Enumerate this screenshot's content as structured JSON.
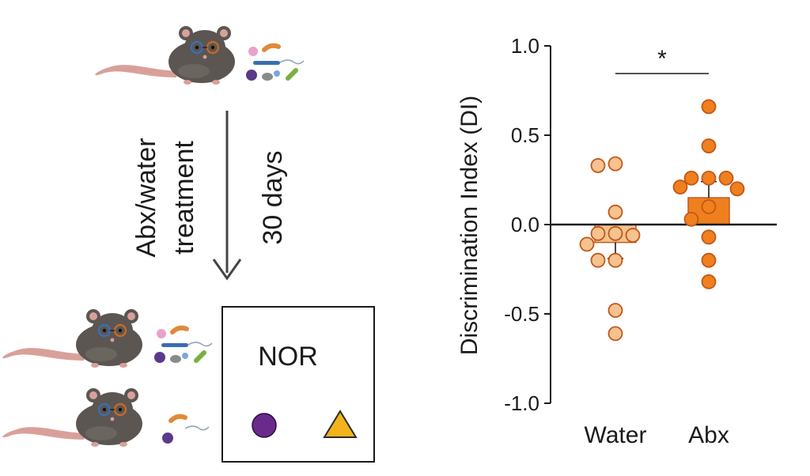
{
  "colors": {
    "water": "#f6c28f",
    "abx": "#f07f1e",
    "marker_edge": "#c0581a",
    "mouse_fur": "#5b5652",
    "mouse_pink": "#d9a09a",
    "object_circle": "#6a2a8c",
    "object_triangle": "#f2b31c"
  },
  "schematic": {
    "treatment_label_line1": "Abx/water",
    "treatment_label_line2": "treatment",
    "duration_label": "30 days",
    "test_label": "NOR"
  },
  "chart_data": {
    "type": "bar",
    "ylabel": "Discrimination Index (DI)",
    "ylim": [
      -1.0,
      1.0
    ],
    "yticks": [
      -1.0,
      -0.5,
      0.0,
      0.5,
      1.0
    ],
    "ytick_labels": [
      "-1.0",
      "-0.5",
      "0.0",
      "0.5",
      "1.0"
    ],
    "categories": [
      "Water",
      "Abx"
    ],
    "means": [
      -0.1,
      0.15
    ],
    "sem": [
      0.09,
      0.09
    ],
    "points": {
      "Water": [
        0.33,
        0.34,
        0.07,
        -0.05,
        -0.06,
        -0.05,
        -0.11,
        -0.2,
        -0.2,
        -0.48,
        -0.61
      ],
      "Abx": [
        0.66,
        0.44,
        0.26,
        0.26,
        0.26,
        0.21,
        0.2,
        0.1,
        0.03,
        -0.07,
        -0.2,
        -0.32
      ]
    },
    "significance": "*"
  }
}
